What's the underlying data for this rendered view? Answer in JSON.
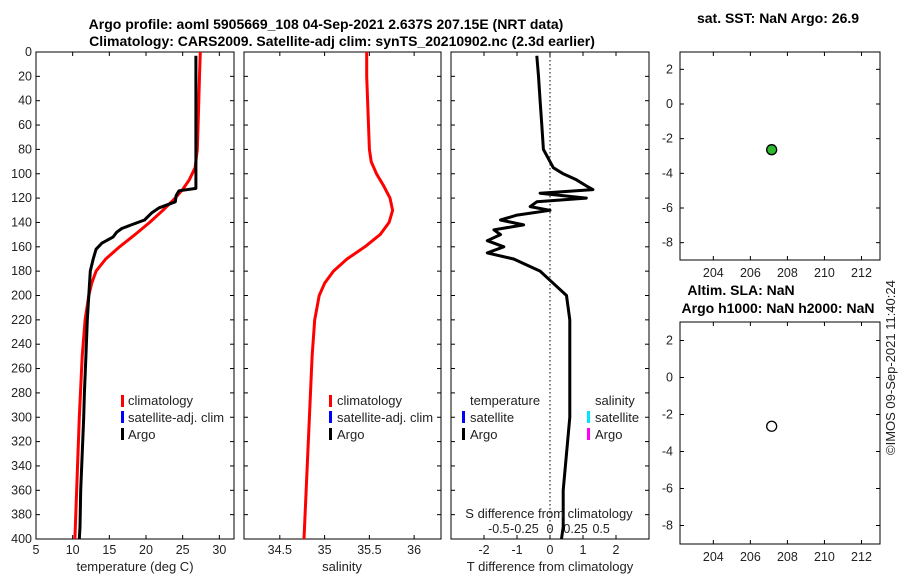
{
  "header": {
    "title_line1": "Argo profile: aoml 5905669_108 04-Sep-2021 2.637S 207.15E (NRT data)",
    "title_line2": "Climatology: CARS2009. Satellite-adj clim: synTS_20210902.nc (2.3d earlier)"
  },
  "timestamp": "©IMOS 09-Sep-2021 11:40:24",
  "colors": {
    "climatology": "#ff0000",
    "satellite": "#0000ff",
    "argo": "#000000",
    "sat_salinity": "#00e5ff",
    "argo_salinity": "#ff00ff",
    "sst_marker": "#2db82d"
  },
  "chart_data": [
    {
      "id": "temperature",
      "type": "line",
      "xlabel": "temperature (deg C)",
      "ylabel": "",
      "xlim": [
        5,
        32
      ],
      "ylim": [
        400,
        0
      ],
      "xticks": [
        5,
        10,
        15,
        20,
        25,
        30
      ],
      "yticks": [
        0,
        20,
        40,
        60,
        80,
        100,
        120,
        140,
        160,
        180,
        200,
        220,
        240,
        260,
        280,
        300,
        320,
        340,
        360,
        380,
        400
      ],
      "legend": [
        "climatology",
        "satellite-adj. clim",
        "Argo"
      ],
      "series": [
        {
          "name": "climatology",
          "color": "#ff0000",
          "depth": [
            0,
            20,
            40,
            60,
            80,
            95,
            105,
            112,
            120,
            130,
            140,
            150,
            160,
            170,
            180,
            190,
            200,
            220,
            250,
            300,
            350,
            400
          ],
          "values": [
            27.4,
            27.3,
            27.2,
            27.1,
            27.0,
            26.7,
            25.9,
            25.1,
            24.0,
            22.3,
            20.5,
            18.5,
            16.4,
            14.5,
            13.2,
            12.6,
            12.2,
            11.7,
            11.3,
            10.9,
            10.6,
            10.3
          ]
        },
        {
          "name": "Argo",
          "color": "#000000",
          "depth": [
            3,
            20,
            40,
            60,
            80,
            100,
            112,
            114,
            118,
            123,
            128,
            132,
            138,
            142,
            145,
            148,
            152,
            157,
            162,
            170,
            180,
            200,
            220,
            250,
            280,
            300,
            330,
            360,
            390,
            400
          ],
          "values": [
            26.8,
            26.8,
            26.8,
            26.8,
            26.8,
            26.8,
            26.8,
            24.5,
            24.1,
            24.0,
            21.8,
            20.8,
            19.8,
            18.0,
            16.7,
            16.0,
            15.5,
            14.0,
            13.2,
            12.8,
            12.4,
            12.2,
            12.0,
            11.8,
            11.6,
            11.5,
            11.3,
            11.1,
            11.0,
            10.9
          ]
        }
      ]
    },
    {
      "id": "salinity",
      "type": "line",
      "xlabel": "salinity",
      "xlim": [
        34.1,
        36.3
      ],
      "ylim": [
        400,
        0
      ],
      "xticks": [
        34.5,
        35,
        35.5,
        36
      ],
      "legend": [
        "climatology",
        "satellite-adj. clim",
        "Argo"
      ],
      "series": [
        {
          "name": "climatology",
          "color": "#ff0000",
          "depth": [
            0,
            20,
            40,
            60,
            80,
            90,
            100,
            110,
            120,
            130,
            140,
            150,
            160,
            170,
            180,
            190,
            200,
            220,
            250,
            300,
            350,
            400
          ],
          "values": [
            35.47,
            35.47,
            35.48,
            35.49,
            35.5,
            35.52,
            35.58,
            35.66,
            35.73,
            35.76,
            35.72,
            35.62,
            35.45,
            35.25,
            35.1,
            35.0,
            34.94,
            34.89,
            34.86,
            34.83,
            34.8,
            34.77
          ]
        }
      ]
    },
    {
      "id": "difference",
      "type": "line",
      "xlabel": "T difference from climatology",
      "xlabel_top": "S difference from climatology",
      "xlim": [
        -3,
        3
      ],
      "ylim": [
        400,
        0
      ],
      "xticks": [
        -2,
        -1,
        0,
        1,
        2
      ],
      "xticks_s": [
        "-0.5",
        "-0.25",
        "0",
        "0.25",
        "0.5"
      ],
      "legend_temperature": [
        "temperature",
        "satellite",
        "Argo"
      ],
      "legend_salinity": [
        "salinity",
        "satellite",
        "Argo"
      ],
      "series": [
        {
          "name": "Argo T difference",
          "color": "#000000",
          "depth": [
            3,
            20,
            40,
            60,
            80,
            95,
            100,
            105,
            110,
            113,
            116,
            120,
            123,
            127,
            130,
            134,
            138,
            142,
            146,
            150,
            155,
            160,
            165,
            170,
            180,
            190,
            200,
            220,
            250,
            280,
            300,
            330,
            360,
            390,
            400
          ],
          "values": [
            -0.4,
            -0.35,
            -0.3,
            -0.25,
            -0.2,
            0.1,
            0.4,
            0.8,
            1.1,
            1.3,
            -0.3,
            1.1,
            -0.4,
            -0.6,
            0.0,
            -1.0,
            -1.5,
            -0.8,
            -1.7,
            -1.5,
            -1.9,
            -1.4,
            -1.9,
            -1.1,
            -0.3,
            0.1,
            0.5,
            0.6,
            0.6,
            0.6,
            0.6,
            0.5,
            0.4,
            0.4,
            0.35
          ]
        }
      ]
    },
    {
      "id": "sst",
      "type": "scatter",
      "title": "sat. SST: NaN Argo: 26.9",
      "xlim": [
        202.2,
        213
      ],
      "ylim": [
        -9,
        3
      ],
      "xticks": [
        204,
        206,
        208,
        210,
        212
      ],
      "yticks": [
        2,
        0,
        -2,
        -4,
        -6,
        -8
      ],
      "points": [
        {
          "x": 207.15,
          "y": -2.637,
          "color": "#2db82d"
        }
      ]
    },
    {
      "id": "sla",
      "type": "scatter",
      "title_line1": "Altim. SLA: NaN",
      "title_line2": "Argo h1000: NaN h2000: NaN",
      "xlim": [
        202.2,
        213
      ],
      "ylim": [
        -9,
        3
      ],
      "xticks": [
        204,
        206,
        208,
        210,
        212
      ],
      "yticks": [
        2,
        0,
        -2,
        -4,
        -6,
        -8
      ],
      "points": [
        {
          "x": 207.15,
          "y": -2.637,
          "color": "#ffffff"
        }
      ]
    }
  ]
}
